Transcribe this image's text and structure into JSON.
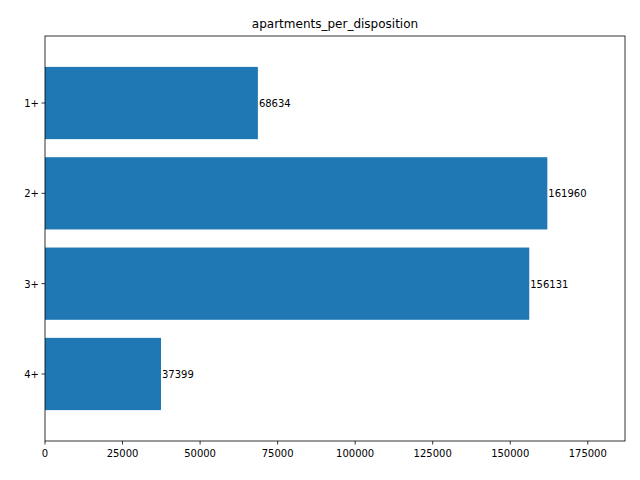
{
  "chart_data": {
    "type": "bar",
    "title": "apartments_per_disposition",
    "orientation": "horizontal",
    "categories": [
      "1+",
      "2+",
      "3+",
      "4+"
    ],
    "values": [
      68634,
      161960,
      156131,
      37399
    ],
    "color": "#1f77b4",
    "xlim": [
      0,
      187000
    ],
    "xticks": [
      0,
      25000,
      50000,
      75000,
      100000,
      125000,
      150000,
      175000
    ],
    "grid": false,
    "data_labels": true
  }
}
